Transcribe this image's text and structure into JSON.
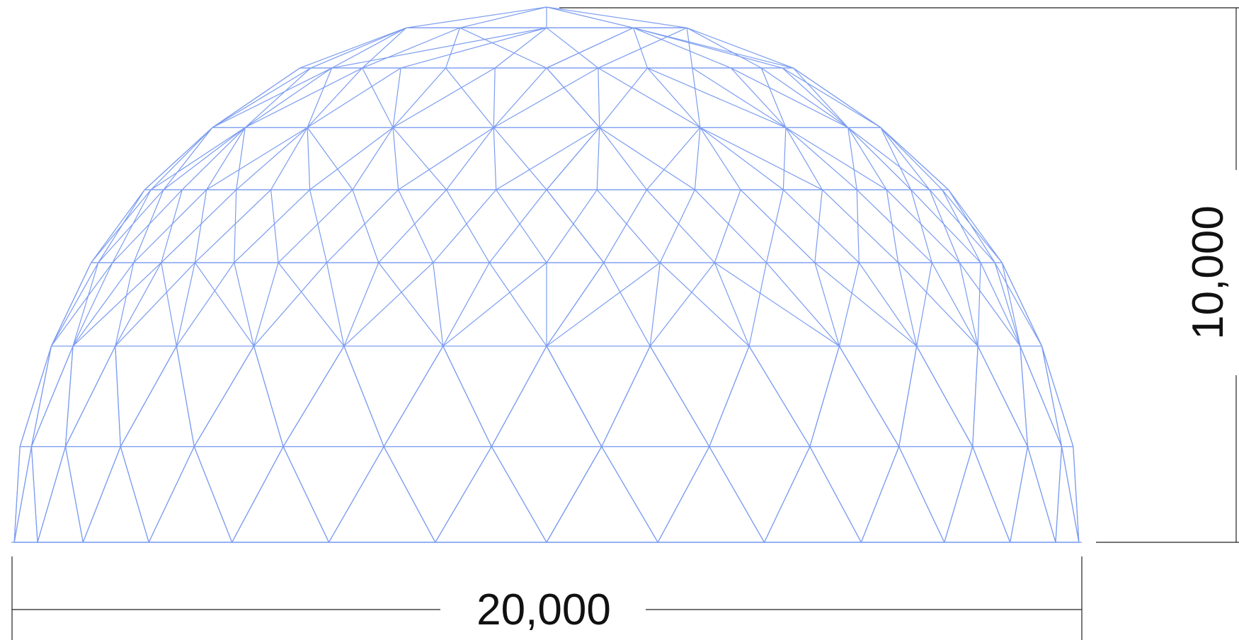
{
  "dimensions": {
    "width": "20,000",
    "height": "10,000"
  }
}
